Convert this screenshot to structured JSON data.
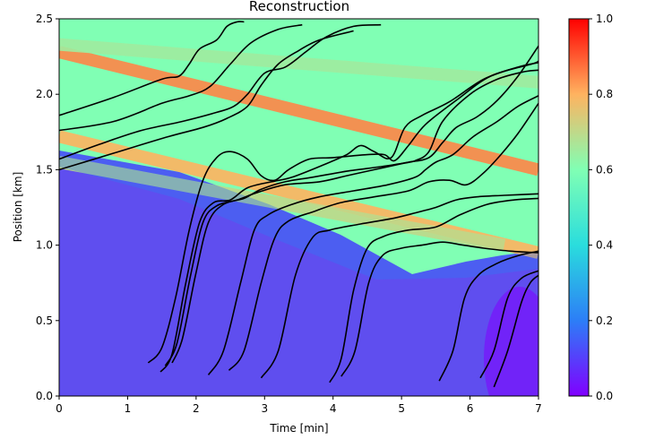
{
  "chart_data": {
    "type": "heatmap",
    "title": "Reconstruction",
    "xlabel": "Time [min]",
    "ylabel": "Position [km]",
    "xlim": [
      0,
      7
    ],
    "ylim": [
      0,
      2.5
    ],
    "x_ticks": [
      "0",
      "1",
      "2",
      "3",
      "4",
      "5",
      "6",
      "7"
    ],
    "y_ticks": [
      "0.0",
      "0.5",
      "1.0",
      "1.5",
      "2.0",
      "2.5"
    ],
    "colorbar": {
      "colormap": "rainbow",
      "range": [
        0,
        1
      ],
      "ticks": [
        "0.0",
        "0.2",
        "0.4",
        "0.6",
        "0.8",
        "1.0"
      ]
    },
    "heatmap_bands": [
      {
        "x_start": 0,
        "y_start": 2.28,
        "x_end": 7,
        "y_end": 1.5,
        "intensity": 0.85
      },
      {
        "x_start": 0,
        "y_start": 1.72,
        "x_end": 7,
        "y_end": 0.95,
        "intensity": 0.8
      },
      {
        "x_start": 0,
        "y_start": 2.33,
        "x_end": 7,
        "y_end": 2.08,
        "intensity": 0.65
      },
      {
        "x_start": 0,
        "y_start": 1.55,
        "x_end": 6.5,
        "y_end": 1.0,
        "intensity": 0.7
      }
    ],
    "trajectories": [
      {
        "points": [
          [
            0.0,
            1.86
          ],
          [
            0.8,
            1.98
          ],
          [
            1.5,
            2.1
          ],
          [
            1.75,
            2.12
          ],
          [
            1.9,
            2.2
          ],
          [
            2.05,
            2.3
          ],
          [
            2.3,
            2.36
          ],
          [
            2.45,
            2.45
          ],
          [
            2.6,
            2.48
          ],
          [
            2.7,
            2.48
          ]
        ]
      },
      {
        "points": [
          [
            0.0,
            1.76
          ],
          [
            0.8,
            1.82
          ],
          [
            1.5,
            1.94
          ],
          [
            1.9,
            1.99
          ],
          [
            2.2,
            2.05
          ],
          [
            2.5,
            2.2
          ],
          [
            2.8,
            2.34
          ],
          [
            3.2,
            2.43
          ],
          [
            3.55,
            2.46
          ]
        ]
      },
      {
        "points": [
          [
            0.0,
            1.57
          ],
          [
            0.6,
            1.67
          ],
          [
            1.2,
            1.76
          ],
          [
            1.8,
            1.82
          ],
          [
            2.3,
            1.88
          ],
          [
            2.55,
            1.92
          ],
          [
            2.75,
            2.0
          ],
          [
            3.0,
            2.14
          ],
          [
            3.3,
            2.18
          ],
          [
            3.6,
            2.28
          ],
          [
            3.9,
            2.38
          ],
          [
            4.3,
            2.45
          ],
          [
            4.7,
            2.46
          ]
        ]
      },
      {
        "points": [
          [
            0.0,
            1.5
          ],
          [
            0.8,
            1.61
          ],
          [
            1.6,
            1.72
          ],
          [
            2.1,
            1.78
          ],
          [
            2.45,
            1.84
          ],
          [
            2.75,
            1.92
          ],
          [
            2.95,
            2.06
          ],
          [
            3.2,
            2.2
          ],
          [
            3.5,
            2.29
          ],
          [
            3.8,
            2.36
          ],
          [
            4.3,
            2.42
          ]
        ]
      },
      {
        "points": [
          [
            1.3,
            0.22
          ],
          [
            1.5,
            0.32
          ],
          [
            1.7,
            0.65
          ],
          [
            1.9,
            1.1
          ],
          [
            2.1,
            1.43
          ],
          [
            2.3,
            1.58
          ],
          [
            2.5,
            1.62
          ],
          [
            2.75,
            1.57
          ],
          [
            2.95,
            1.46
          ],
          [
            3.15,
            1.43
          ],
          [
            3.35,
            1.5
          ],
          [
            3.65,
            1.57
          ],
          [
            4.0,
            1.58
          ],
          [
            4.5,
            1.6
          ],
          [
            4.75,
            1.6
          ],
          [
            4.9,
            1.56
          ],
          [
            5.1,
            1.66
          ],
          [
            5.35,
            1.8
          ],
          [
            5.8,
            1.96
          ],
          [
            6.3,
            2.12
          ],
          [
            6.9,
            2.2
          ],
          [
            7.0,
            2.22
          ]
        ]
      },
      {
        "points": [
          [
            1.48,
            0.16
          ],
          [
            1.65,
            0.28
          ],
          [
            1.85,
            0.75
          ],
          [
            2.05,
            1.15
          ],
          [
            2.25,
            1.28
          ],
          [
            2.5,
            1.3
          ],
          [
            2.75,
            1.38
          ],
          [
            3.1,
            1.42
          ],
          [
            3.4,
            1.45
          ],
          [
            3.9,
            1.54
          ],
          [
            4.2,
            1.6
          ],
          [
            4.4,
            1.66
          ],
          [
            4.6,
            1.62
          ],
          [
            4.85,
            1.58
          ],
          [
            5.05,
            1.78
          ],
          [
            5.3,
            1.86
          ],
          [
            5.7,
            1.95
          ],
          [
            6.2,
            2.1
          ],
          [
            6.7,
            2.18
          ],
          [
            7.0,
            2.21
          ]
        ]
      },
      {
        "points": [
          [
            1.55,
            0.2
          ],
          [
            1.72,
            0.35
          ],
          [
            1.92,
            0.8
          ],
          [
            2.1,
            1.15
          ],
          [
            2.3,
            1.26
          ],
          [
            2.6,
            1.3
          ],
          [
            2.9,
            1.35
          ],
          [
            3.3,
            1.4
          ],
          [
            3.8,
            1.42
          ],
          [
            4.2,
            1.46
          ],
          [
            4.6,
            1.5
          ],
          [
            5.0,
            1.54
          ],
          [
            5.2,
            1.56
          ],
          [
            5.4,
            1.62
          ],
          [
            5.6,
            1.82
          ],
          [
            6.0,
            2.0
          ],
          [
            6.4,
            2.1
          ],
          [
            6.8,
            2.15
          ],
          [
            7.0,
            2.16
          ]
        ]
      },
      {
        "points": [
          [
            1.65,
            0.22
          ],
          [
            1.8,
            0.38
          ],
          [
            2.0,
            0.82
          ],
          [
            2.18,
            1.15
          ],
          [
            2.4,
            1.27
          ],
          [
            2.7,
            1.31
          ],
          [
            2.95,
            1.37
          ],
          [
            3.3,
            1.42
          ],
          [
            3.7,
            1.45
          ],
          [
            4.2,
            1.49
          ],
          [
            4.7,
            1.52
          ],
          [
            5.1,
            1.55
          ],
          [
            5.4,
            1.58
          ],
          [
            5.6,
            1.68
          ],
          [
            5.8,
            1.78
          ],
          [
            6.1,
            1.85
          ],
          [
            6.4,
            1.96
          ],
          [
            6.7,
            2.12
          ],
          [
            7.0,
            2.32
          ]
        ]
      },
      {
        "points": [
          [
            2.18,
            0.14
          ],
          [
            2.4,
            0.3
          ],
          [
            2.65,
            0.75
          ],
          [
            2.85,
            1.1
          ],
          [
            3.05,
            1.2
          ],
          [
            3.4,
            1.27
          ],
          [
            3.8,
            1.32
          ],
          [
            4.3,
            1.36
          ],
          [
            4.8,
            1.4
          ],
          [
            5.2,
            1.45
          ],
          [
            5.35,
            1.5
          ],
          [
            5.5,
            1.55
          ],
          [
            5.75,
            1.6
          ],
          [
            6.05,
            1.72
          ],
          [
            6.4,
            1.82
          ],
          [
            6.7,
            1.92
          ],
          [
            7.0,
            1.99
          ]
        ]
      },
      {
        "points": [
          [
            2.48,
            0.17
          ],
          [
            2.7,
            0.3
          ],
          [
            2.95,
            0.75
          ],
          [
            3.15,
            1.05
          ],
          [
            3.35,
            1.16
          ],
          [
            3.7,
            1.22
          ],
          [
            4.1,
            1.28
          ],
          [
            4.6,
            1.32
          ],
          [
            5.1,
            1.36
          ],
          [
            5.4,
            1.42
          ],
          [
            5.7,
            1.43
          ],
          [
            5.95,
            1.4
          ],
          [
            6.2,
            1.48
          ],
          [
            6.45,
            1.6
          ],
          [
            6.7,
            1.74
          ],
          [
            7.0,
            1.94
          ]
        ]
      },
      {
        "points": [
          [
            2.95,
            0.12
          ],
          [
            3.2,
            0.3
          ],
          [
            3.45,
            0.8
          ],
          [
            3.7,
            1.05
          ],
          [
            3.95,
            1.1
          ],
          [
            4.4,
            1.14
          ],
          [
            4.9,
            1.18
          ],
          [
            5.25,
            1.22
          ],
          [
            5.5,
            1.25
          ],
          [
            5.8,
            1.3
          ],
          [
            6.1,
            1.32
          ],
          [
            6.5,
            1.33
          ],
          [
            7.0,
            1.34
          ]
        ]
      },
      {
        "points": [
          [
            3.95,
            0.09
          ],
          [
            4.12,
            0.25
          ],
          [
            4.3,
            0.7
          ],
          [
            4.5,
            0.98
          ],
          [
            4.75,
            1.06
          ],
          [
            5.1,
            1.1
          ],
          [
            5.5,
            1.12
          ],
          [
            5.85,
            1.2
          ],
          [
            6.25,
            1.27
          ],
          [
            6.65,
            1.3
          ],
          [
            7.0,
            1.31
          ]
        ]
      },
      {
        "points": [
          [
            4.12,
            0.13
          ],
          [
            4.32,
            0.3
          ],
          [
            4.52,
            0.75
          ],
          [
            4.72,
            0.93
          ],
          [
            5.0,
            0.98
          ],
          [
            5.3,
            1.0
          ],
          [
            5.6,
            1.02
          ],
          [
            5.9,
            1.0
          ],
          [
            6.2,
            0.98
          ],
          [
            6.6,
            0.96
          ],
          [
            7.0,
            0.95
          ]
        ]
      },
      {
        "points": [
          [
            5.55,
            0.1
          ],
          [
            5.75,
            0.3
          ],
          [
            5.92,
            0.65
          ],
          [
            6.12,
            0.8
          ],
          [
            6.4,
            0.88
          ],
          [
            6.7,
            0.93
          ],
          [
            7.0,
            0.96
          ]
        ]
      },
      {
        "points": [
          [
            6.15,
            0.12
          ],
          [
            6.35,
            0.3
          ],
          [
            6.55,
            0.65
          ],
          [
            6.75,
            0.78
          ],
          [
            7.0,
            0.83
          ]
        ]
      },
      {
        "points": [
          [
            6.35,
            0.06
          ],
          [
            6.55,
            0.3
          ],
          [
            6.75,
            0.62
          ],
          [
            6.88,
            0.75
          ],
          [
            7.0,
            0.8
          ]
        ]
      }
    ]
  }
}
